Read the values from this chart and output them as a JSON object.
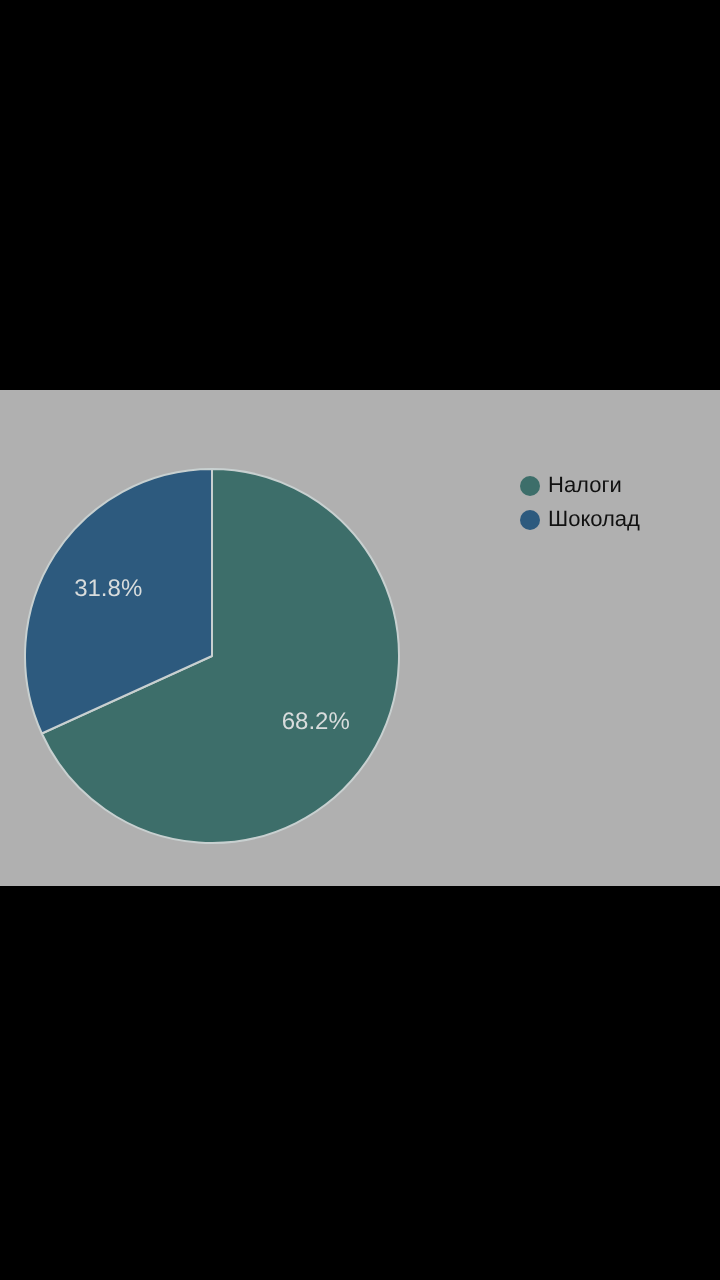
{
  "chart_data": {
    "type": "pie",
    "categories": [
      "Налоги",
      "Шоколад"
    ],
    "values": [
      68.2,
      31.8
    ],
    "colors": [
      "#3d6e6a",
      "#2d5a7e"
    ],
    "value_labels": [
      "68.2%",
      "31.8%"
    ],
    "legend": "top right"
  }
}
